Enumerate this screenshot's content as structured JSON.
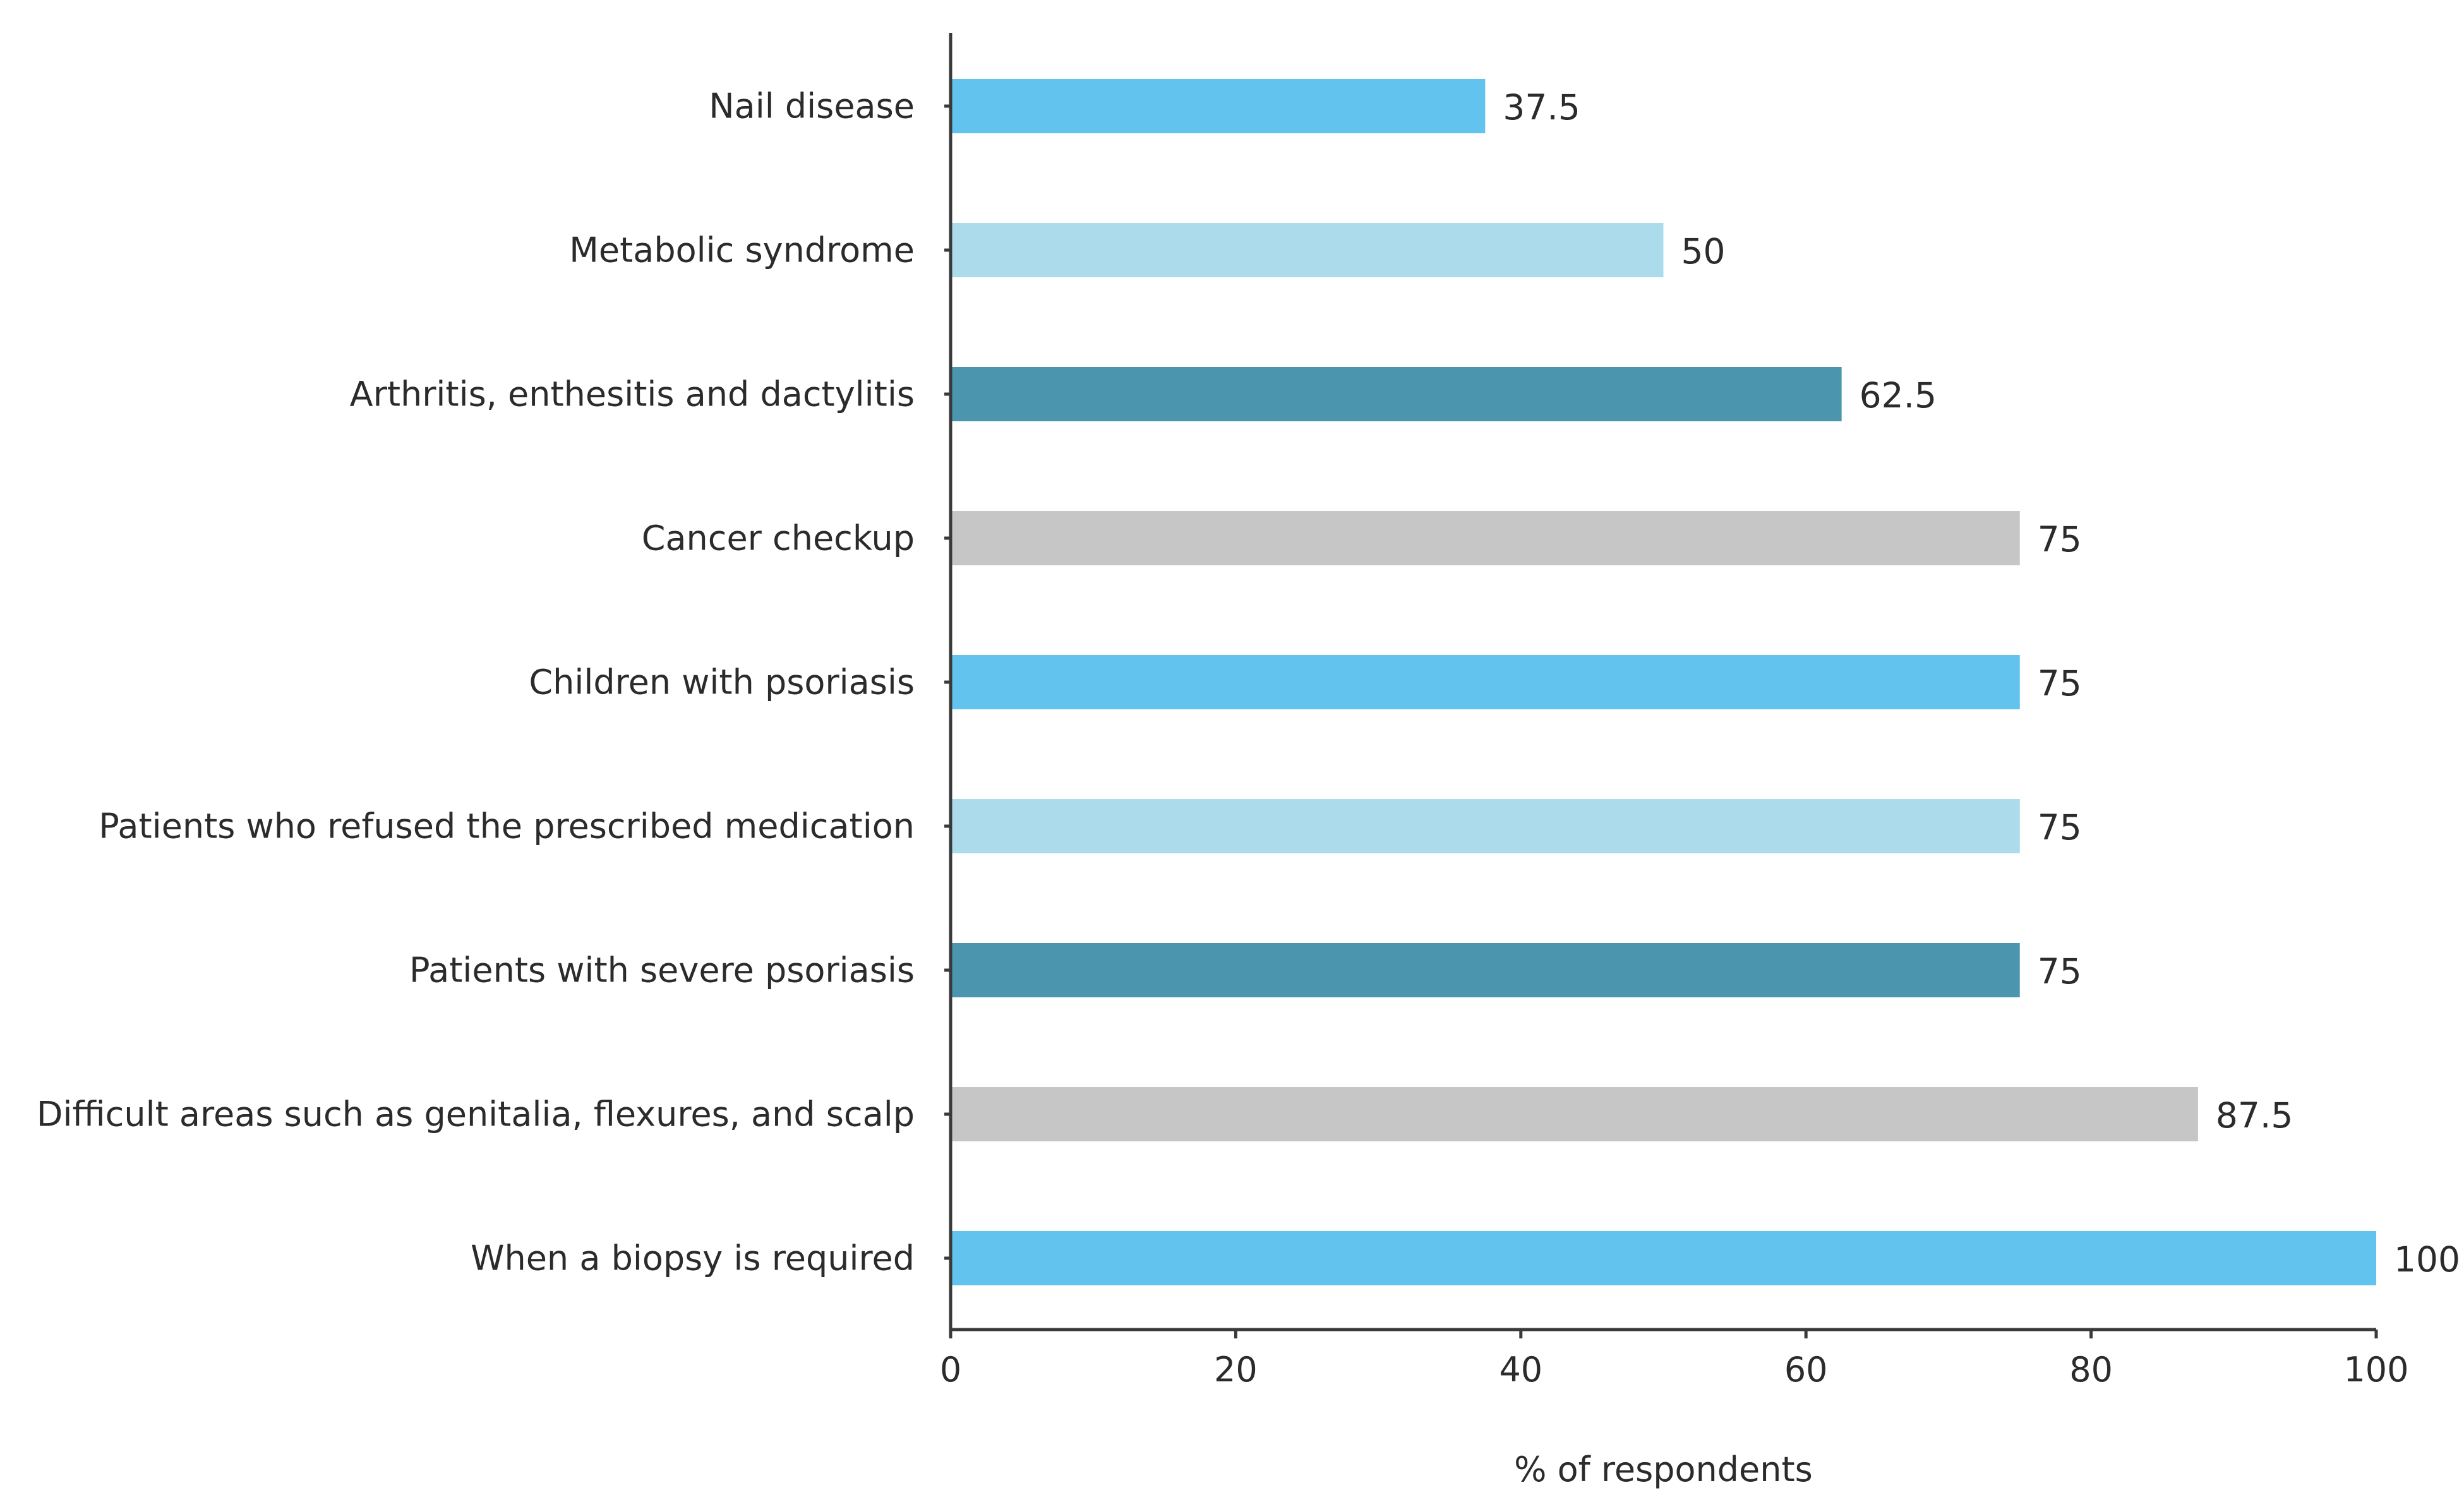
{
  "chart_data": {
    "type": "bar",
    "orientation": "horizontal",
    "categories": [
      "Nail disease",
      "Metabolic syndrome",
      "Arthritis, enthesitis and dactylitis",
      "Cancer checkup",
      "Children with psoriasis",
      "Patients who refused the prescribed medication",
      "Patients with severe psoriasis",
      "Difficult areas such as genitalia, flexures, and scalp",
      "When a biopsy is required"
    ],
    "values": [
      37.5,
      50,
      62.5,
      75,
      75,
      75,
      75,
      87.5,
      100
    ],
    "value_labels": [
      "37.5",
      "50",
      "62.5",
      "75",
      "75",
      "75",
      "75",
      "87.5",
      "100"
    ],
    "bar_colors": [
      "#62c3ef",
      "#acdcec",
      "#4b95ae",
      "#c6c6c6",
      "#62c3ef",
      "#acdcec",
      "#4b95ae",
      "#c6c6c6",
      "#62c3ef"
    ],
    "xlabel": "% of respondents",
    "ylabel": "",
    "title": "",
    "xlim": [
      0,
      100
    ],
    "xticks": [
      0,
      20,
      40,
      60,
      80,
      100
    ],
    "xtick_labels": [
      "0",
      "20",
      "40",
      "60",
      "80",
      "100"
    ],
    "grid": false,
    "legend": "none"
  }
}
